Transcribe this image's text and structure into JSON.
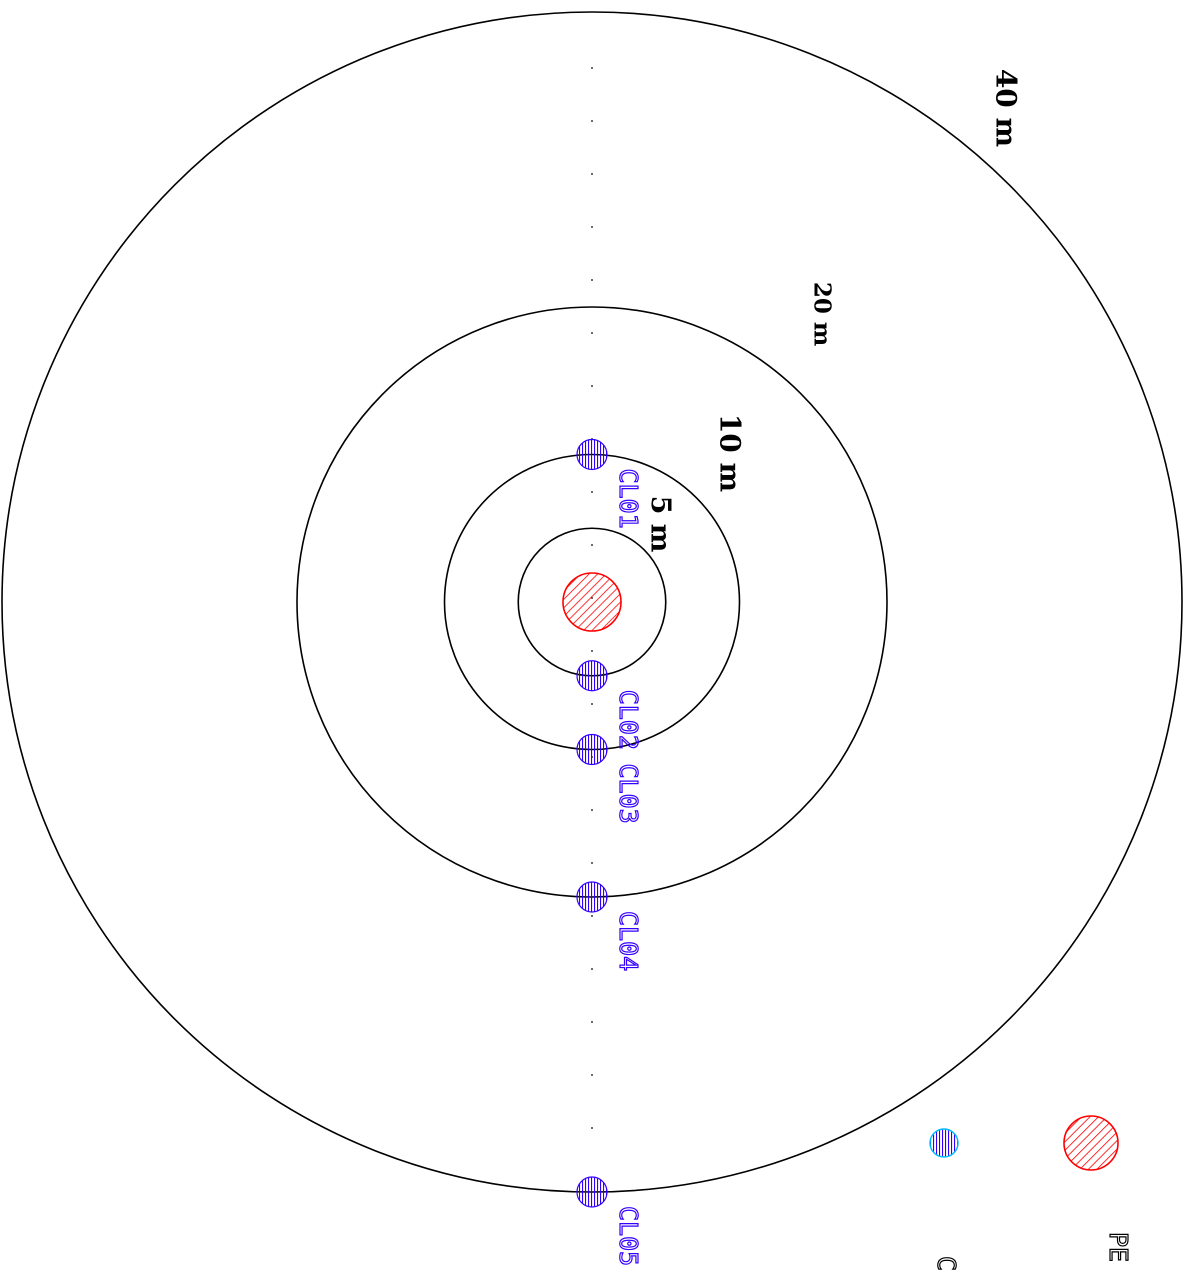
{
  "legend": {
    "source_label": "PE",
    "well_label": "C",
    "source_color": "#ff0000",
    "well_color": "#3300ff",
    "well_edge_color": "#00bbff"
  },
  "rings": [
    {
      "radius_m": 5,
      "label": "5 m"
    },
    {
      "radius_m": 10,
      "label": "10 m"
    },
    {
      "radius_m": 20,
      "label": "20 m"
    },
    {
      "radius_m": 40,
      "label": "40 m"
    }
  ],
  "wells": [
    {
      "label": "CL01",
      "distance_m": 10,
      "side": "up"
    },
    {
      "label": "CL02",
      "distance_m": 5,
      "side": "down"
    },
    {
      "label": "CL03",
      "distance_m": 10,
      "side": "down"
    },
    {
      "label": "CL04",
      "distance_m": 20,
      "side": "down"
    },
    {
      "label": "CL05",
      "distance_m": 40,
      "side": "down"
    }
  ],
  "colors": {
    "ring_stroke": "#000000",
    "source_hatch": "#ff0000",
    "well_fill": "#3300ff",
    "well_label": "#3300ff"
  }
}
